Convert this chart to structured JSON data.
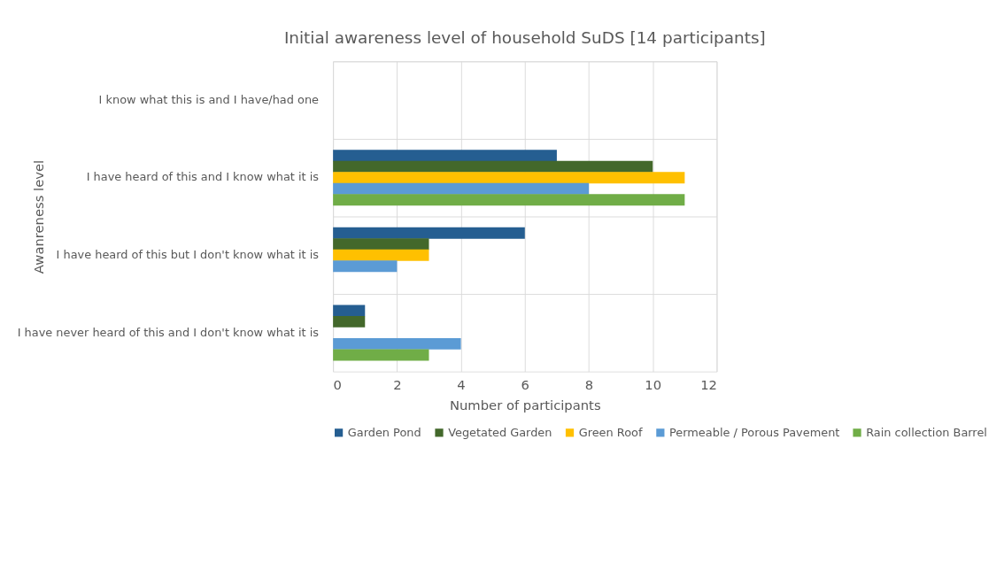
{
  "chart_data": {
    "type": "bar",
    "orientation": "horizontal",
    "title": "Initial awareness level of household SuDS [14 participants]",
    "xlabel": "Number of participants",
    "ylabel": "Awanreness level",
    "categories": [
      "I know what this is and I have/had one",
      "I have heard of this and I know what it is",
      "I have heard of this but I don't know what it is",
      "I have never heard of this and I don't know what it is"
    ],
    "series": [
      {
        "name": "Garden Pond",
        "color": "#255e91",
        "values": [
          0,
          7,
          6,
          1
        ]
      },
      {
        "name": "Vegetated Garden",
        "color": "#43682b",
        "values": [
          0,
          10,
          3,
          1
        ]
      },
      {
        "name": "Green Roof",
        "color": "#ffc000",
        "values": [
          0,
          11,
          3,
          0
        ]
      },
      {
        "name": "Permeable / Porous Pavement",
        "color": "#5b9bd5",
        "values": [
          0,
          8,
          2,
          4
        ]
      },
      {
        "name": "Rain collection Barrel",
        "color": "#70ad47",
        "values": [
          0,
          11,
          0,
          3
        ]
      }
    ],
    "xlim": [
      0,
      12
    ],
    "xticks": [
      0,
      2,
      4,
      6,
      8,
      10,
      12
    ],
    "grid": true,
    "legend": "bottom"
  }
}
